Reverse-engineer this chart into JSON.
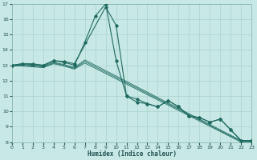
{
  "xlabel": "Humidex (Indice chaleur)",
  "xlim": [
    0,
    23
  ],
  "ylim": [
    8,
    17
  ],
  "xtick_vals": [
    0,
    1,
    2,
    3,
    4,
    5,
    6,
    7,
    8,
    9,
    10,
    11,
    12,
    13,
    14,
    15,
    16,
    17,
    18,
    19,
    20,
    21,
    22,
    23
  ],
  "ytick_vals": [
    8,
    9,
    10,
    11,
    12,
    13,
    14,
    15,
    16,
    17
  ],
  "bg_color": "#c8e8e5",
  "grid_color": "#a0ceca",
  "line_color": "#1f6b61",
  "lines": [
    {
      "x": [
        0,
        1,
        2,
        3,
        4,
        5,
        6,
        9,
        10,
        11,
        12,
        13,
        14,
        15,
        16,
        17,
        18,
        19,
        20,
        21,
        22,
        23
      ],
      "y": [
        13,
        13.1,
        13.1,
        13.0,
        13.3,
        13.25,
        13.1,
        16.8,
        15.6,
        11.0,
        10.8,
        10.5,
        10.3,
        10.7,
        10.3,
        9.7,
        9.6,
        9.3,
        9.5,
        8.8,
        8.1,
        8.1
      ],
      "marker": true,
      "lw": 0.8
    },
    {
      "x": [
        0,
        1,
        2,
        3,
        4,
        5,
        6,
        7,
        8,
        9,
        10,
        11,
        12,
        13,
        14,
        15,
        16,
        17,
        18,
        19,
        20,
        21,
        22,
        23
      ],
      "y": [
        13,
        13.1,
        13.05,
        13.0,
        13.3,
        13.2,
        13.0,
        14.5,
        16.2,
        17.0,
        13.3,
        11.0,
        10.6,
        10.5,
        10.3,
        10.7,
        10.3,
        9.7,
        9.6,
        9.3,
        9.5,
        8.8,
        8.1,
        8.1
      ],
      "marker": true,
      "lw": 0.8
    },
    {
      "x": [
        0,
        1,
        2,
        3,
        4,
        5,
        6,
        7,
        22,
        23
      ],
      "y": [
        13.0,
        13.05,
        13.0,
        12.95,
        13.2,
        13.05,
        12.85,
        13.35,
        8.1,
        8.1
      ],
      "marker": false,
      "lw": 0.6
    },
    {
      "x": [
        0,
        1,
        2,
        3,
        4,
        5,
        6,
        7,
        22,
        23
      ],
      "y": [
        13.0,
        13.0,
        12.95,
        12.9,
        13.15,
        13.0,
        12.8,
        13.25,
        8.05,
        8.05
      ],
      "marker": false,
      "lw": 0.6
    },
    {
      "x": [
        0,
        1,
        2,
        3,
        4,
        5,
        6,
        7,
        22,
        23
      ],
      "y": [
        12.95,
        12.95,
        12.9,
        12.85,
        13.1,
        12.95,
        12.75,
        13.15,
        8.0,
        8.0
      ],
      "marker": false,
      "lw": 0.6
    }
  ]
}
